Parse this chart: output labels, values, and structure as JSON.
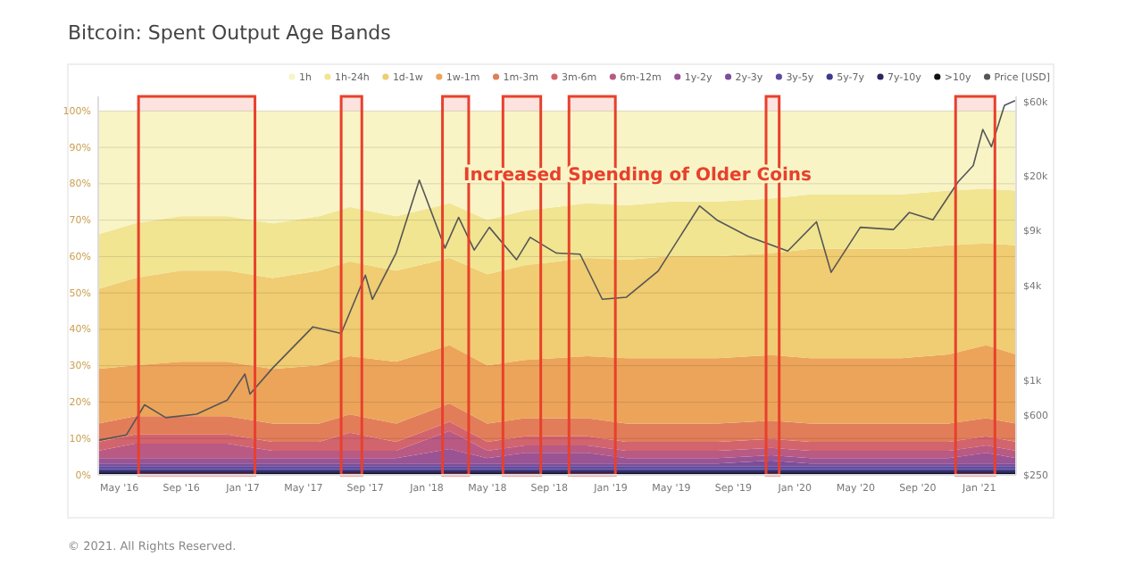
{
  "chart_data": {
    "type": "area",
    "stacked": true,
    "title": "Bitcoin: Spent Output Age Bands",
    "annotations": [
      "Increased Spending of Older Coins",
      "© 2021. All Rights Reserved."
    ],
    "x": [
      "2016-03-20",
      "2016-06-01",
      "2016-09-01",
      "2016-12-01",
      "2017-03-01",
      "2017-06-01",
      "2017-08-01",
      "2017-11-01",
      "2018-02-15",
      "2018-05-01",
      "2018-07-15",
      "2018-11-15",
      "2019-02-01",
      "2019-05-01",
      "2019-08-01",
      "2019-11-15",
      "2020-02-01",
      "2020-05-01",
      "2020-08-01",
      "2020-11-01",
      "2021-01-15",
      "2021-03-15"
    ],
    "xlim": [
      "2016-03-20",
      "2021-03-15"
    ],
    "xticks": [
      {
        "value": "2016-05-01",
        "label": "May '16"
      },
      {
        "value": "2016-09-01",
        "label": "Sep '16"
      },
      {
        "value": "2017-01-01",
        "label": "Jan '17"
      },
      {
        "value": "2017-05-01",
        "label": "May '17"
      },
      {
        "value": "2017-09-01",
        "label": "Sep '17"
      },
      {
        "value": "2018-01-01",
        "label": "Jan '18"
      },
      {
        "value": "2018-05-01",
        "label": "May '18"
      },
      {
        "value": "2018-09-01",
        "label": "Sep '18"
      },
      {
        "value": "2019-01-01",
        "label": "Jan '19"
      },
      {
        "value": "2019-05-01",
        "label": "May '19"
      },
      {
        "value": "2019-09-01",
        "label": "Sep '19"
      },
      {
        "value": "2020-01-01",
        "label": "Jan '20"
      },
      {
        "value": "2020-05-01",
        "label": "May '20"
      },
      {
        "value": "2020-09-01",
        "label": "Sep '20"
      },
      {
        "value": "2021-01-01",
        "label": "Jan '21"
      }
    ],
    "ylim": [
      0,
      104
    ],
    "yticks": [
      {
        "value": 0,
        "label": "0%"
      },
      {
        "value": 10,
        "label": "10%"
      },
      {
        "value": 20,
        "label": "20%"
      },
      {
        "value": 30,
        "label": "30%"
      },
      {
        "value": 40,
        "label": "40%"
      },
      {
        "value": 50,
        "label": "50%"
      },
      {
        "value": 60,
        "label": "60%"
      },
      {
        "value": 70,
        "label": "70%"
      },
      {
        "value": 80,
        "label": "80%"
      },
      {
        "value": 90,
        "label": "90%"
      },
      {
        "value": 100,
        "label": "100%"
      }
    ],
    "y2lim": [
      250,
      65000
    ],
    "log": "y2",
    "y2ticks": [
      {
        "value": 250,
        "label": "$250"
      },
      {
        "value": 600,
        "label": "$600"
      },
      {
        "value": 1000,
        "label": "$1k"
      },
      {
        "value": 4000,
        "label": "$4k"
      },
      {
        "value": 9000,
        "label": "$9k"
      },
      {
        "value": 20000,
        "label": "$20k"
      },
      {
        "value": 60000,
        "label": "$60k"
      }
    ],
    "grid": "y",
    "legend": "top right",
    "bands": [
      {
        "axis": "x",
        "from": "2016-06-08",
        "to": "2017-01-25",
        "color": "#e8402c"
      },
      {
        "axis": "x",
        "from": "2017-07-15",
        "to": "2017-08-25",
        "color": "#e8402c"
      },
      {
        "axis": "x",
        "from": "2018-02-01",
        "to": "2018-03-25",
        "color": "#e8402c"
      },
      {
        "axis": "x",
        "from": "2018-06-01",
        "to": "2018-08-15",
        "color": "#e8402c"
      },
      {
        "axis": "x",
        "from": "2018-10-10",
        "to": "2019-01-10",
        "color": "#e8402c"
      },
      {
        "axis": "x",
        "from": "2019-11-05",
        "to": "2019-12-01",
        "color": "#e8402c"
      },
      {
        "axis": "x",
        "from": "2020-11-15",
        "to": "2021-02-01",
        "color": "#e8402c"
      }
    ],
    "series": [
      {
        "name": ">10y",
        "color": "#111111",
        "values": [
          0.5,
          0.5,
          0.5,
          0.5,
          0.5,
          0.5,
          0.5,
          0.5,
          0.5,
          0.5,
          0.5,
          0.5,
          0.5,
          0.5,
          0.5,
          0.5,
          0.5,
          0.5,
          0.5,
          0.5,
          0.5,
          0.5
        ]
      },
      {
        "name": "7y-10y",
        "color": "#2d2660",
        "values": [
          0.5,
          0.5,
          0.5,
          0.5,
          0.5,
          0.5,
          0.5,
          0.5,
          0.5,
          0.5,
          0.5,
          0.5,
          0.5,
          0.5,
          0.5,
          0.5,
          0.5,
          0.5,
          0.5,
          0.5,
          0.5,
          0.5
        ]
      },
      {
        "name": "5y-7y",
        "color": "#3f3a8a",
        "values": [
          0.6,
          0.6,
          0.6,
          0.6,
          0.6,
          0.6,
          0.6,
          0.6,
          0.6,
          0.6,
          0.6,
          0.6,
          0.6,
          0.6,
          0.6,
          0.6,
          0.6,
          0.6,
          0.6,
          0.6,
          0.6,
          0.6
        ]
      },
      {
        "name": "3y-5y",
        "color": "#5e4a9e",
        "values": [
          0.8,
          0.8,
          0.8,
          0.8,
          0.8,
          0.8,
          0.8,
          0.8,
          0.8,
          0.8,
          0.8,
          0.8,
          0.8,
          0.8,
          0.8,
          0.8,
          0.8,
          0.8,
          0.8,
          0.8,
          0.8,
          0.8
        ]
      },
      {
        "name": "2y-3y",
        "color": "#7b4e9a",
        "values": [
          0.7,
          0.7,
          0.7,
          0.7,
          0.7,
          0.7,
          0.7,
          0.7,
          0.7,
          0.7,
          0.7,
          0.7,
          0.7,
          0.7,
          0.7,
          1.5,
          0.7,
          0.7,
          0.7,
          0.7,
          0.7,
          0.7
        ]
      },
      {
        "name": "1y-2y",
        "color": "#9a5494",
        "values": [
          1.5,
          1.5,
          1.5,
          1.5,
          1.5,
          1.5,
          1.5,
          1.5,
          4,
          1.5,
          3,
          3,
          1.5,
          1.5,
          1.5,
          1.5,
          1.5,
          1.5,
          1.5,
          1.5,
          3,
          1.5
        ]
      },
      {
        "name": "6m-12m",
        "color": "#b85a84",
        "values": [
          2,
          4,
          4,
          4,
          2,
          2,
          2,
          2,
          5,
          2,
          2,
          2,
          2,
          2,
          2,
          2,
          2,
          2,
          2,
          2,
          2,
          2
        ]
      },
      {
        "name": "3m-6m",
        "color": "#d2646e",
        "values": [
          2.5,
          2.5,
          2.5,
          2.5,
          2.5,
          2.5,
          5,
          2.5,
          2.5,
          2.5,
          2.5,
          2.5,
          2.5,
          2.5,
          2.5,
          2.5,
          2.5,
          2.5,
          2.5,
          2.5,
          2.5,
          2.5
        ]
      },
      {
        "name": "1m-3m",
        "color": "#e27d5a",
        "values": [
          5,
          5,
          5,
          5,
          5,
          5,
          5,
          5,
          5,
          5,
          5,
          5,
          5,
          5,
          5,
          5,
          5,
          5,
          5,
          5,
          5,
          5
        ]
      },
      {
        "name": "1w-1m",
        "color": "#eca45a",
        "values": [
          15,
          14,
          15,
          15,
          15,
          16,
          16,
          17,
          16,
          16,
          16,
          17,
          18,
          18,
          18,
          18,
          18,
          18,
          18,
          19,
          20,
          19
        ]
      },
      {
        "name": "1d-1w",
        "color": "#f0cc72",
        "values": [
          22,
          24,
          25,
          25,
          25,
          26,
          26,
          25,
          24,
          25,
          26,
          27,
          27,
          28,
          28,
          28,
          30,
          30,
          30,
          30,
          28,
          30
        ]
      },
      {
        "name": "1h-24h",
        "color": "#f1e592",
        "values": [
          15,
          15,
          15,
          15,
          15,
          15,
          15,
          15,
          15,
          15,
          15,
          15,
          15,
          15,
          15,
          15,
          15,
          15,
          15,
          15,
          15,
          15
        ]
      },
      {
        "name": "1h",
        "color": "#f8f4c6",
        "values": [
          33.9,
          30.9,
          28.9,
          28.9,
          30.9,
          28.9,
          26.4,
          28.9,
          25.4,
          29.9,
          27.4,
          25.4,
          25.9,
          24.9,
          24.9,
          24.1,
          22.9,
          22.9,
          22.9,
          21.9,
          21.4,
          21.9
        ]
      },
      {
        "name": "Price [USD]",
        "type": "line",
        "axis": "y2",
        "color": "#555555",
        "x": [
          "2016-03-20",
          "2016-05-15",
          "2016-06-20",
          "2016-08-01",
          "2016-10-01",
          "2016-12-01",
          "2017-01-05",
          "2017-01-15",
          "2017-03-01",
          "2017-05-20",
          "2017-07-15",
          "2017-09-01",
          "2017-09-15",
          "2017-11-01",
          "2017-12-17",
          "2018-02-06",
          "2018-03-05",
          "2018-04-05",
          "2018-05-05",
          "2018-06-28",
          "2018-07-25",
          "2018-09-15",
          "2018-11-01",
          "2018-12-15",
          "2019-02-01",
          "2019-04-05",
          "2019-06-26",
          "2019-08-01",
          "2019-10-01",
          "2019-12-18",
          "2020-02-13",
          "2020-03-13",
          "2020-05-10",
          "2020-07-15",
          "2020-08-15",
          "2020-10-01",
          "2020-11-20",
          "2020-12-20",
          "2021-01-08",
          "2021-01-25",
          "2021-02-20",
          "2021-03-13"
        ],
        "values": [
          415,
          450,
          700,
          580,
          610,
          750,
          1100,
          820,
          1200,
          2200,
          2000,
          4700,
          3300,
          6500,
          19000,
          7000,
          11000,
          6800,
          9500,
          5900,
          8200,
          6500,
          6400,
          3300,
          3400,
          5000,
          13000,
          10500,
          8300,
          6700,
          10300,
          4900,
          9500,
          9200,
          11800,
          10600,
          18500,
          23500,
          40000,
          31000,
          57000,
          61000
        ]
      }
    ]
  }
}
